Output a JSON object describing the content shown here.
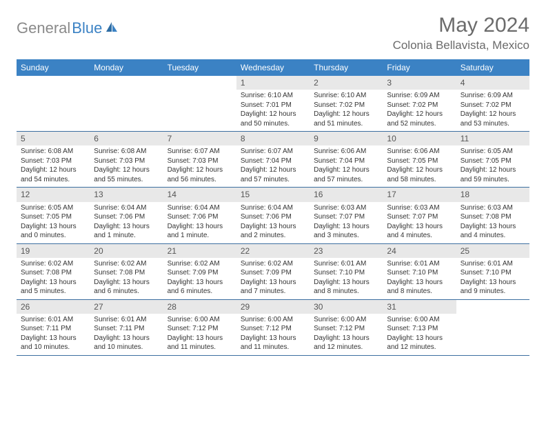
{
  "logo": {
    "text1": "General",
    "text2": "Blue"
  },
  "title": "May 2024",
  "location": "Colonia Bellavista, Mexico",
  "colors": {
    "header_bg": "#3b82c4",
    "header_text": "#ffffff",
    "daynum_bg": "#e8e8e8",
    "row_border": "#3b6ea0",
    "text": "#333333",
    "title_text": "#6b6b6b"
  },
  "weekdays": [
    "Sunday",
    "Monday",
    "Tuesday",
    "Wednesday",
    "Thursday",
    "Friday",
    "Saturday"
  ],
  "weeks": [
    [
      {
        "n": "",
        "sr": "",
        "ss": "",
        "dl": ""
      },
      {
        "n": "",
        "sr": "",
        "ss": "",
        "dl": ""
      },
      {
        "n": "",
        "sr": "",
        "ss": "",
        "dl": ""
      },
      {
        "n": "1",
        "sr": "Sunrise: 6:10 AM",
        "ss": "Sunset: 7:01 PM",
        "dl": "Daylight: 12 hours and 50 minutes."
      },
      {
        "n": "2",
        "sr": "Sunrise: 6:10 AM",
        "ss": "Sunset: 7:02 PM",
        "dl": "Daylight: 12 hours and 51 minutes."
      },
      {
        "n": "3",
        "sr": "Sunrise: 6:09 AM",
        "ss": "Sunset: 7:02 PM",
        "dl": "Daylight: 12 hours and 52 minutes."
      },
      {
        "n": "4",
        "sr": "Sunrise: 6:09 AM",
        "ss": "Sunset: 7:02 PM",
        "dl": "Daylight: 12 hours and 53 minutes."
      }
    ],
    [
      {
        "n": "5",
        "sr": "Sunrise: 6:08 AM",
        "ss": "Sunset: 7:03 PM",
        "dl": "Daylight: 12 hours and 54 minutes."
      },
      {
        "n": "6",
        "sr": "Sunrise: 6:08 AM",
        "ss": "Sunset: 7:03 PM",
        "dl": "Daylight: 12 hours and 55 minutes."
      },
      {
        "n": "7",
        "sr": "Sunrise: 6:07 AM",
        "ss": "Sunset: 7:03 PM",
        "dl": "Daylight: 12 hours and 56 minutes."
      },
      {
        "n": "8",
        "sr": "Sunrise: 6:07 AM",
        "ss": "Sunset: 7:04 PM",
        "dl": "Daylight: 12 hours and 57 minutes."
      },
      {
        "n": "9",
        "sr": "Sunrise: 6:06 AM",
        "ss": "Sunset: 7:04 PM",
        "dl": "Daylight: 12 hours and 57 minutes."
      },
      {
        "n": "10",
        "sr": "Sunrise: 6:06 AM",
        "ss": "Sunset: 7:05 PM",
        "dl": "Daylight: 12 hours and 58 minutes."
      },
      {
        "n": "11",
        "sr": "Sunrise: 6:05 AM",
        "ss": "Sunset: 7:05 PM",
        "dl": "Daylight: 12 hours and 59 minutes."
      }
    ],
    [
      {
        "n": "12",
        "sr": "Sunrise: 6:05 AM",
        "ss": "Sunset: 7:05 PM",
        "dl": "Daylight: 13 hours and 0 minutes."
      },
      {
        "n": "13",
        "sr": "Sunrise: 6:04 AM",
        "ss": "Sunset: 7:06 PM",
        "dl": "Daylight: 13 hours and 1 minute."
      },
      {
        "n": "14",
        "sr": "Sunrise: 6:04 AM",
        "ss": "Sunset: 7:06 PM",
        "dl": "Daylight: 13 hours and 1 minute."
      },
      {
        "n": "15",
        "sr": "Sunrise: 6:04 AM",
        "ss": "Sunset: 7:06 PM",
        "dl": "Daylight: 13 hours and 2 minutes."
      },
      {
        "n": "16",
        "sr": "Sunrise: 6:03 AM",
        "ss": "Sunset: 7:07 PM",
        "dl": "Daylight: 13 hours and 3 minutes."
      },
      {
        "n": "17",
        "sr": "Sunrise: 6:03 AM",
        "ss": "Sunset: 7:07 PM",
        "dl": "Daylight: 13 hours and 4 minutes."
      },
      {
        "n": "18",
        "sr": "Sunrise: 6:03 AM",
        "ss": "Sunset: 7:08 PM",
        "dl": "Daylight: 13 hours and 4 minutes."
      }
    ],
    [
      {
        "n": "19",
        "sr": "Sunrise: 6:02 AM",
        "ss": "Sunset: 7:08 PM",
        "dl": "Daylight: 13 hours and 5 minutes."
      },
      {
        "n": "20",
        "sr": "Sunrise: 6:02 AM",
        "ss": "Sunset: 7:08 PM",
        "dl": "Daylight: 13 hours and 6 minutes."
      },
      {
        "n": "21",
        "sr": "Sunrise: 6:02 AM",
        "ss": "Sunset: 7:09 PM",
        "dl": "Daylight: 13 hours and 6 minutes."
      },
      {
        "n": "22",
        "sr": "Sunrise: 6:02 AM",
        "ss": "Sunset: 7:09 PM",
        "dl": "Daylight: 13 hours and 7 minutes."
      },
      {
        "n": "23",
        "sr": "Sunrise: 6:01 AM",
        "ss": "Sunset: 7:10 PM",
        "dl": "Daylight: 13 hours and 8 minutes."
      },
      {
        "n": "24",
        "sr": "Sunrise: 6:01 AM",
        "ss": "Sunset: 7:10 PM",
        "dl": "Daylight: 13 hours and 8 minutes."
      },
      {
        "n": "25",
        "sr": "Sunrise: 6:01 AM",
        "ss": "Sunset: 7:10 PM",
        "dl": "Daylight: 13 hours and 9 minutes."
      }
    ],
    [
      {
        "n": "26",
        "sr": "Sunrise: 6:01 AM",
        "ss": "Sunset: 7:11 PM",
        "dl": "Daylight: 13 hours and 10 minutes."
      },
      {
        "n": "27",
        "sr": "Sunrise: 6:01 AM",
        "ss": "Sunset: 7:11 PM",
        "dl": "Daylight: 13 hours and 10 minutes."
      },
      {
        "n": "28",
        "sr": "Sunrise: 6:00 AM",
        "ss": "Sunset: 7:12 PM",
        "dl": "Daylight: 13 hours and 11 minutes."
      },
      {
        "n": "29",
        "sr": "Sunrise: 6:00 AM",
        "ss": "Sunset: 7:12 PM",
        "dl": "Daylight: 13 hours and 11 minutes."
      },
      {
        "n": "30",
        "sr": "Sunrise: 6:00 AM",
        "ss": "Sunset: 7:12 PM",
        "dl": "Daylight: 13 hours and 12 minutes."
      },
      {
        "n": "31",
        "sr": "Sunrise: 6:00 AM",
        "ss": "Sunset: 7:13 PM",
        "dl": "Daylight: 13 hours and 12 minutes."
      },
      {
        "n": "",
        "sr": "",
        "ss": "",
        "dl": ""
      }
    ]
  ]
}
